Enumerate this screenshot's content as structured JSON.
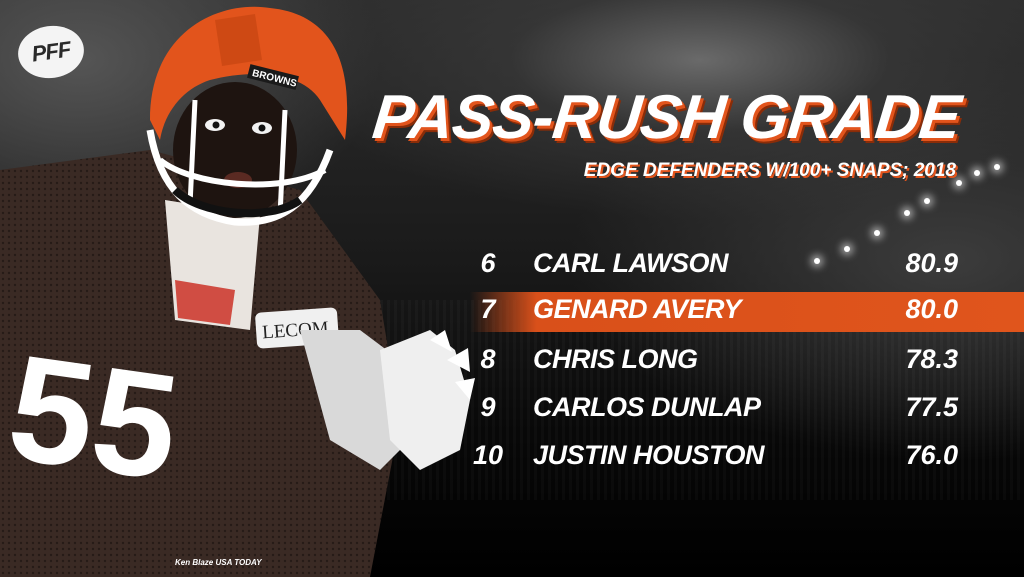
{
  "logo": {
    "text": "PFF"
  },
  "title": "PASS-RUSH GRADE",
  "subtitle": "EDGE DEFENDERS W/100+ SNAPS; 2018",
  "rows": [
    {
      "rank": "6",
      "name": "CARL LAWSON",
      "grade": "80.9",
      "highlighted": false
    },
    {
      "rank": "7",
      "name": "GENARD AVERY",
      "grade": "80.0",
      "highlighted": true
    },
    {
      "rank": "8",
      "name": "CHRIS LONG",
      "grade": "78.3",
      "highlighted": false
    },
    {
      "rank": "9",
      "name": "CARLOS DUNLAP",
      "grade": "77.5",
      "highlighted": false
    },
    {
      "rank": "10",
      "name": "JUSTIN HOUSTON",
      "grade": "76.0",
      "highlighted": false
    }
  ],
  "player": {
    "helmet_text": "BROWNS",
    "patch_text": "LECOM",
    "jersey_number": "55",
    "colors": {
      "helmet": "#e2541c",
      "jersey": "#3a2a24",
      "facemask": "#ffffff"
    }
  },
  "photo_credit": "Ken Blaze USA TODAY",
  "colors": {
    "accent": "#e2541c",
    "text": "#ffffff",
    "background": "#111111"
  }
}
